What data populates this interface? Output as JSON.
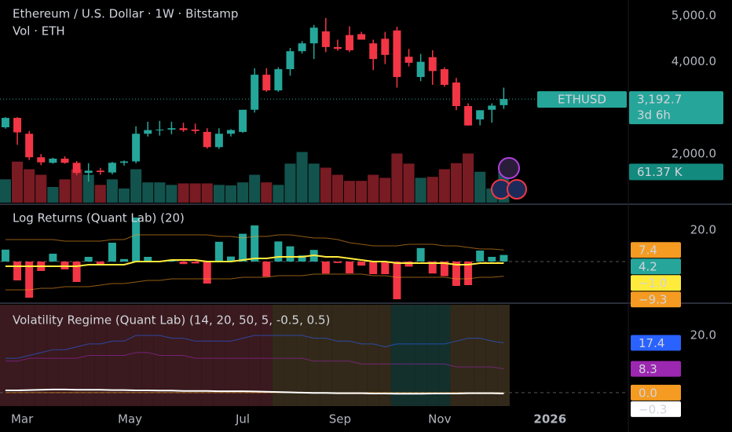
{
  "chart_data": [
    {
      "type": "candlestick",
      "title": "Ethereum / U.S. Dollar · 1W · Bitstamp",
      "subtitle": "Vol · ETH",
      "xlim": [
        -0.46,
        52.5
      ],
      "xticks": [
        {
          "value": 1.4,
          "label": "Mar"
        },
        {
          "value": 10.5,
          "label": "May"
        },
        {
          "value": 20,
          "label": "Jul"
        },
        {
          "value": 28.2,
          "label": "Sep"
        },
        {
          "value": 36.6,
          "label": "Nov"
        },
        {
          "value": 45.9,
          "label": "2026"
        }
      ],
      "ylim": [
        946,
        5340
      ],
      "yticks": [
        {
          "value": 5000,
          "label": "5,000.0"
        },
        {
          "value": 4000,
          "label": "4,000.0"
        },
        {
          "value": 2000,
          "label": "2,000.0"
        }
      ],
      "series": [
        {
          "name": "ETHUSD",
          "color_up": "#26a69a",
          "color_down": "#f23645",
          "open": [
            2580,
            2784,
            2440,
            1930,
            1810,
            1900,
            1810,
            1590,
            1640,
            1600,
            1810,
            1840,
            2440,
            2520,
            2530,
            2560,
            2530,
            2480,
            2150,
            2440,
            2480,
            2960,
            3720,
            3380,
            3840,
            4230,
            4400,
            4660,
            4320,
            4580,
            4600,
            4400,
            4500,
            4680,
            4110,
            3670,
            4100,
            3840,
            3550,
            3040,
            2750,
            2960,
            3060
          ],
          "high": [
            2800,
            2800,
            2500,
            2000,
            1920,
            1950,
            1850,
            1800,
            1700,
            1830,
            1860,
            2600,
            2700,
            2720,
            2700,
            2680,
            2660,
            2560,
            2560,
            2540,
            2960,
            3860,
            3860,
            3880,
            4300,
            4450,
            4800,
            4950,
            4480,
            4770,
            4650,
            4480,
            4650,
            4760,
            4280,
            4170,
            4250,
            3880,
            3650,
            3100,
            2950,
            3100,
            3440
          ],
          "low": [
            2550,
            2200,
            1870,
            1760,
            1790,
            1790,
            1540,
            1400,
            1550,
            1560,
            1750,
            1800,
            2380,
            2400,
            2430,
            2480,
            2440,
            2120,
            2110,
            2380,
            2460,
            2900,
            3350,
            3350,
            3700,
            4180,
            4060,
            4210,
            4240,
            4210,
            4480,
            3820,
            3950,
            3440,
            3900,
            3580,
            3500,
            3460,
            2950,
            2620,
            2620,
            2680,
            2980
          ],
          "close": [
            2784,
            2470,
            1930,
            1820,
            1900,
            1810,
            1590,
            1640,
            1610,
            1810,
            1840,
            2440,
            2520,
            2530,
            2560,
            2520,
            2500,
            2150,
            2440,
            2520,
            2960,
            3720,
            3380,
            3840,
            4230,
            4400,
            4740,
            4320,
            4280,
            4250,
            4480,
            4060,
            4150,
            3670,
            3980,
            4000,
            3800,
            3500,
            3040,
            2620,
            2950,
            3050,
            3192.7
          ],
          "last_label": "3,192.7",
          "countdown": "3d 6h"
        }
      ],
      "volume": {
        "lim": [
          0,
          400000
        ],
        "color_up": "rgba(38,166,154,0.5)",
        "color_down": "rgba(242,54,69,0.5)",
        "values": [
          46000,
          81000,
          66000,
          55000,
          31000,
          46000,
          66000,
          55000,
          35000,
          46000,
          28000,
          66000,
          40000,
          40000,
          35000,
          38000,
          38000,
          38000,
          35000,
          34000,
          40000,
          55000,
          40000,
          35000,
          77000,
          100000,
          77000,
          69000,
          55000,
          43000,
          43000,
          55000,
          49000,
          97000,
          77000,
          49000,
          51000,
          66000,
          78000,
          97000,
          61000,
          28000,
          61370
        ],
        "last_label": "61.37 K"
      }
    },
    {
      "type": "bar",
      "title": "Log Returns (Quant Lab) (20)",
      "ylim": [
        -26,
        35.5
      ],
      "yticks": [
        {
          "value": 20,
          "label": "20.0"
        }
      ],
      "bars": {
        "color_up": "#26a69a",
        "color_down": "#f23645",
        "values": [
          7.6,
          -12,
          -23,
          -6,
          5,
          -5,
          -13,
          3,
          -2,
          12,
          1.6,
          28,
          3,
          0.4,
          1.2,
          -1.6,
          -1.2,
          -14,
          12.6,
          3.2,
          17.7,
          23,
          -9.6,
          12.8,
          9.7,
          3.9,
          7.4,
          -7.6,
          -0.9,
          -7.5,
          -2.6,
          -8,
          -8,
          -24,
          -3.2,
          8.6,
          -7.6,
          -9.3,
          -15.5,
          -15,
          7,
          3,
          4.2
        ]
      },
      "series": [
        {
          "color": "#f59b22",
          "width": 1,
          "values": [
            14,
            14,
            14,
            14,
            14,
            13,
            13,
            13,
            13,
            14,
            14,
            17,
            17,
            17,
            17,
            17,
            17,
            17,
            16,
            16,
            15,
            16,
            16,
            17,
            17,
            16,
            15,
            15,
            14,
            12,
            11,
            10,
            10,
            10,
            11,
            11,
            11,
            10,
            10,
            9,
            8,
            8,
            7.4
          ]
        },
        {
          "color": "#ffeb3b",
          "width": 2,
          "values": [
            -3,
            -3,
            -3,
            -3,
            -3,
            -3,
            -3,
            -2,
            -2,
            -2,
            -2,
            0,
            0,
            0,
            1,
            1,
            1,
            0,
            0,
            0,
            1,
            2,
            2,
            3,
            3,
            3,
            4,
            3,
            3,
            2,
            1,
            0,
            0,
            -1,
            -1,
            -1,
            -1,
            -1,
            -2,
            -2,
            -1,
            -1,
            -1.0
          ],
          "last_label": "−1.0"
        },
        {
          "color": "#f59b22",
          "width": 1,
          "values": [
            -18,
            -18,
            -18,
            -17,
            -17,
            -16,
            -16,
            -16,
            -15,
            -14,
            -14,
            -13,
            -12,
            -12,
            -11,
            -11,
            -11,
            -11,
            -11,
            -11,
            -10,
            -10,
            -10,
            -9,
            -9,
            -9,
            -8,
            -8,
            -8,
            -8,
            -8,
            -9,
            -9,
            -10,
            -10,
            -10,
            -10,
            -10,
            -11,
            -11,
            -10,
            -10,
            -9.3
          ],
          "last_label": "−9.3"
        }
      ]
    },
    {
      "type": "line",
      "title": "Volatility Regime (Quant Lab) (14, 20, 50, 5, -0.5, 0.5)",
      "ylim": [
        -4.7,
        30.7
      ],
      "yticks": [
        {
          "value": 20,
          "label": "20.0"
        }
      ],
      "background_colors": [
        "#3a1a1e",
        "#3a1a1e",
        "#3a1a1e",
        "#3a1a1e",
        "#3a1a1e",
        "#3a1a1e",
        "#3a1a1e",
        "#3a1a1e",
        "#3a1a1e",
        "#3a1a1e",
        "#3a1a1e",
        "#3a1a1e",
        "#3a1a1e",
        "#3a1a1e",
        "#3a1a1e",
        "#3a1a1e",
        "#3a1a1e",
        "#3a1a1e",
        "#3a1a1e",
        "#3a1a1e",
        "#3a1a1e",
        "#3a1a1e",
        "#3a1a1e",
        "#33291a",
        "#33291a",
        "#33291a",
        "#33291a",
        "#33291a",
        "#33291a",
        "#33291a",
        "#33291a",
        "#33291a",
        "#33291a",
        "#14302d",
        "#14302d",
        "#14302d",
        "#14302d",
        "#14302d",
        "#33291a",
        "#33291a",
        "#33291a",
        "#33291a",
        "#33291a"
      ],
      "series": [
        {
          "color": "#2962ff",
          "width": 1,
          "values": [
            12,
            12,
            13,
            14,
            15,
            15,
            16,
            17,
            17,
            18,
            18,
            20,
            20,
            20,
            19,
            19,
            18,
            18,
            18,
            18,
            19,
            20,
            20,
            20,
            20,
            20,
            19,
            19,
            18,
            18,
            17,
            17,
            16,
            17,
            17,
            17,
            17,
            17,
            18,
            19,
            19,
            18,
            17.4
          ]
        },
        {
          "color": "#9c27b0",
          "width": 1,
          "values": [
            11,
            11,
            12,
            12,
            12,
            12,
            12,
            13,
            13,
            13,
            13,
            14,
            14,
            13,
            13,
            13,
            12,
            12,
            12,
            12,
            12,
            12,
            12,
            12,
            12,
            12,
            11,
            11,
            11,
            11,
            10,
            10,
            10,
            10,
            10,
            10,
            10,
            10,
            9,
            9,
            9,
            9,
            8.3
          ]
        },
        {
          "color": "#f59b22",
          "width": 1,
          "values": [
            0,
            0,
            0,
            0,
            0,
            0,
            0,
            0,
            0,
            0,
            0,
            0,
            0,
            0,
            0,
            0,
            0,
            0,
            0,
            0,
            0,
            0,
            0,
            0,
            0,
            0,
            0,
            0,
            0,
            0,
            0,
            0,
            0,
            0,
            0,
            0,
            0,
            0,
            0,
            0,
            0,
            0,
            0.0
          ],
          "last_label": "0.0"
        },
        {
          "color": "#ffffff",
          "width": 2,
          "values": [
            0.8,
            0.8,
            0.9,
            1,
            1.1,
            1.1,
            1,
            1,
            1,
            0.9,
            0.9,
            0.8,
            0.8,
            0.7,
            0.7,
            0.6,
            0.6,
            0.6,
            0.5,
            0.5,
            0.5,
            0.4,
            0.3,
            0.2,
            0.1,
            0,
            -0.1,
            -0.1,
            -0.2,
            -0.2,
            -0.2,
            -0.3,
            -0.3,
            -0.4,
            -0.4,
            -0.4,
            -0.3,
            -0.3,
            -0.3,
            -0.2,
            -0.2,
            -0.2,
            -0.3
          ],
          "last_label": "−0.3"
        }
      ]
    }
  ]
}
